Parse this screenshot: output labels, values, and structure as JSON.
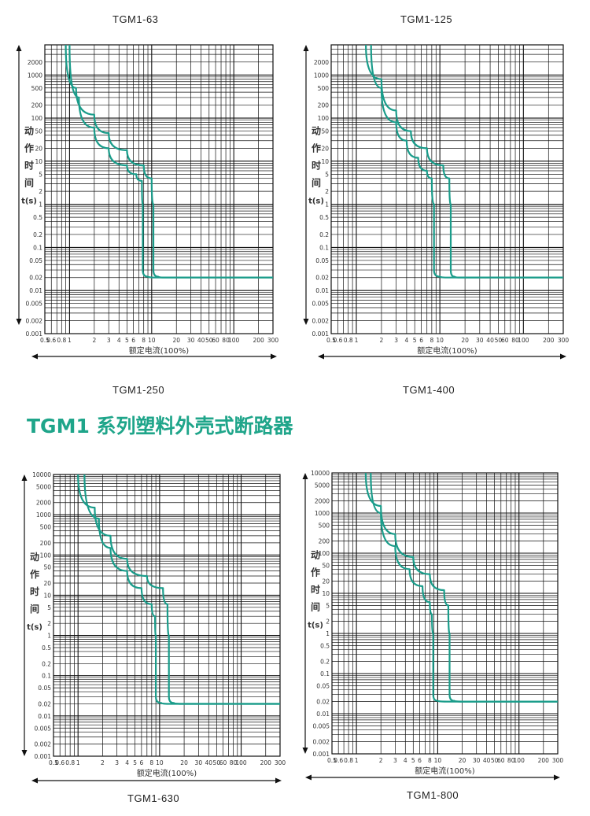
{
  "page": {
    "series_heading": "TGM1 系列塑料外壳式断路器",
    "accent_color": "#1fa58a",
    "curve_color": "#1a9c8a",
    "grid_color": "#111111"
  },
  "labels": {
    "tgm1_63": "TGM1-63",
    "tgm1_125": "TGM1-125",
    "tgm1_250": "TGM1-250",
    "tgm1_400": "TGM1-400",
    "tgm1_630": "TGM1-630",
    "tgm1_800": "TGM1-800"
  },
  "chart_data": [
    {
      "type": "line",
      "xlabel": "额定电流(100%)",
      "ylabel": [
        "动",
        "作",
        "时",
        "间",
        "t(s)"
      ],
      "x_scale": "log",
      "y_scale": "log",
      "xlim": [
        0.5,
        300
      ],
      "ylim": [
        0.001,
        5000
      ],
      "x_ticks": [
        0.5,
        0.6,
        0.8,
        1,
        2,
        3,
        4,
        5,
        6,
        8,
        10,
        20,
        30,
        40,
        50,
        60,
        80,
        100,
        200,
        300
      ],
      "x_tick_labels": [
        "0.5",
        "0.6",
        "0.8",
        "1",
        "2",
        "3",
        "4",
        "5",
        "6",
        "8",
        "10",
        "20",
        "30",
        "40",
        "50",
        "60",
        "80",
        "100",
        "200",
        "300"
      ],
      "y_ticks": [
        2000,
        1000,
        500,
        200,
        100,
        50,
        20,
        10,
        5,
        2,
        1,
        0.5,
        0.2,
        0.1,
        0.05,
        0.02,
        0.01,
        0.005,
        0.002,
        0.001
      ],
      "y_tick_labels": [
        "2000",
        "1000",
        "500",
        "200",
        "100",
        "50",
        "20",
        "10",
        "5",
        "2",
        "1",
        "0.5",
        "0.2",
        "0.1",
        "0.05",
        "0.02",
        "0.01",
        "0.005",
        "0.002",
        "0.001"
      ],
      "grid": true,
      "series": [
        {
          "points": [
            [
              1.0,
              5000
            ],
            [
              1.3,
              300
            ],
            [
              2.0,
              60
            ],
            [
              3.0,
              20
            ],
            [
              5.0,
              8
            ],
            [
              6.5,
              5
            ],
            [
              7.6,
              3.5
            ],
            [
              7.8,
              1
            ],
            [
              7.8,
              0.03
            ],
            [
              9.0,
              0.021
            ],
            [
              12.0,
              0.02
            ],
            [
              300,
              0.02
            ]
          ]
        },
        {
          "points": [
            [
              0.9,
              5000
            ],
            [
              1.2,
              500
            ],
            [
              2.0,
              120
            ],
            [
              3.0,
              45
            ],
            [
              5.0,
              18
            ],
            [
              8.0,
              8
            ],
            [
              10.0,
              4
            ],
            [
              10.5,
              1
            ],
            [
              10.5,
              0.03
            ],
            [
              12.0,
              0.021
            ],
            [
              15.0,
              0.02
            ],
            [
              300,
              0.02
            ]
          ]
        }
      ]
    },
    {
      "type": "line",
      "xlabel": "额定电流(100%)",
      "ylabel": [
        "动",
        "作",
        "时",
        "间",
        "t(s)"
      ],
      "x_scale": "log",
      "y_scale": "log",
      "xlim": [
        0.5,
        300
      ],
      "ylim": [
        0.001,
        5000
      ],
      "x_ticks": [
        0.5,
        0.6,
        0.8,
        1,
        2,
        3,
        4,
        5,
        6,
        8,
        10,
        20,
        30,
        40,
        50,
        60,
        80,
        100,
        200,
        300
      ],
      "x_tick_labels": [
        "0.5",
        "0.6",
        "0.8",
        "1",
        "2",
        "3",
        "4",
        "5",
        "6",
        "8",
        "10",
        "20",
        "30",
        "40",
        "50",
        "60",
        "80",
        "100",
        "200",
        "300"
      ],
      "y_ticks": [
        2000,
        1000,
        500,
        200,
        100,
        50,
        20,
        10,
        5,
        2,
        1,
        0.5,
        0.2,
        0.1,
        0.05,
        0.02,
        0.01,
        0.005,
        0.002,
        0.001
      ],
      "y_tick_labels": [
        "2000",
        "1000",
        "500",
        "200",
        "100",
        "50",
        "20",
        "10",
        "5",
        "2",
        "1",
        "0.5",
        "0.2",
        "0.1",
        "0.05",
        "0.02",
        "0.01",
        "0.005",
        "0.002",
        "0.001"
      ],
      "grid": true,
      "series": [
        {
          "points": [
            [
              1.5,
              5000
            ],
            [
              2.0,
              500
            ],
            [
              3.0,
              80
            ],
            [
              4.0,
              30
            ],
            [
              5.5,
              12
            ],
            [
              7.0,
              6
            ],
            [
              8.0,
              4
            ],
            [
              8.5,
              1
            ],
            [
              8.5,
              0.03
            ],
            [
              10.0,
              0.021
            ],
            [
              13.0,
              0.02
            ],
            [
              300,
              0.02
            ]
          ]
        },
        {
          "points": [
            [
              1.3,
              5000
            ],
            [
              2.0,
              800
            ],
            [
              3.0,
              150
            ],
            [
              4.5,
              50
            ],
            [
              7.0,
              20
            ],
            [
              11.0,
              8
            ],
            [
              13.0,
              4
            ],
            [
              13.5,
              1
            ],
            [
              13.5,
              0.03
            ],
            [
              15.0,
              0.021
            ],
            [
              18.0,
              0.02
            ],
            [
              300,
              0.02
            ]
          ]
        }
      ]
    },
    {
      "type": "line",
      "xlabel": "额定电流(100%)",
      "ylabel": [
        "动",
        "作",
        "时",
        "间",
        "t(s)"
      ],
      "x_scale": "log",
      "y_scale": "log",
      "xlim": [
        0.5,
        300
      ],
      "ylim": [
        0.001,
        10000
      ],
      "x_ticks": [
        0.5,
        0.6,
        0.8,
        1,
        2,
        3,
        4,
        5,
        6,
        8,
        10,
        20,
        30,
        40,
        50,
        60,
        80,
        100,
        200,
        300
      ],
      "x_tick_labels": [
        "0.5",
        "0.6",
        "0.8",
        "1",
        "2",
        "3",
        "4",
        "5",
        "6",
        "8",
        "10",
        "20",
        "30",
        "40",
        "50",
        "60",
        "80",
        "100",
        "200",
        "300"
      ],
      "y_ticks": [
        10000,
        5000,
        2000,
        1000,
        500,
        200,
        100,
        50,
        20,
        10,
        5,
        2,
        1,
        0.5,
        0.2,
        0.1,
        0.05,
        0.02,
        0.01,
        0.005,
        0.002,
        0.001
      ],
      "y_tick_labels": [
        "10000",
        "5000",
        "2000",
        "1000",
        "500",
        "200",
        "100",
        "50",
        "20",
        "10",
        "5",
        "2",
        "1",
        "0.5",
        "0.2",
        "0.1",
        "0.05",
        "0.02",
        "0.01",
        "0.005",
        "0.002",
        "0.001"
      ],
      "grid": true,
      "series": [
        {
          "points": [
            [
              1.2,
              10000
            ],
            [
              1.8,
              800
            ],
            [
              2.5,
              150
            ],
            [
              4.0,
              40
            ],
            [
              6.0,
              15
            ],
            [
              8.0,
              6
            ],
            [
              8.8,
              3
            ],
            [
              9.0,
              1
            ],
            [
              9.0,
              0.03
            ],
            [
              10.5,
              0.021
            ],
            [
              14.0,
              0.02
            ],
            [
              300,
              0.02
            ]
          ]
        },
        {
          "points": [
            [
              1.0,
              10000
            ],
            [
              1.6,
              1500
            ],
            [
              2.5,
              300
            ],
            [
              4.0,
              80
            ],
            [
              7.0,
              30
            ],
            [
              11.0,
              15
            ],
            [
              12.5,
              6
            ],
            [
              13.0,
              1
            ],
            [
              13.0,
              0.03
            ],
            [
              15.0,
              0.021
            ],
            [
              20.0,
              0.02
            ],
            [
              300,
              0.02
            ]
          ]
        }
      ]
    },
    {
      "type": "line",
      "xlabel": "额定电流(100%)",
      "ylabel": [
        "动",
        "作",
        "时",
        "间",
        "t(s)"
      ],
      "x_scale": "log",
      "y_scale": "log",
      "xlim": [
        0.5,
        300
      ],
      "ylim": [
        0.001,
        10000
      ],
      "x_ticks": [
        0.5,
        0.6,
        0.8,
        1,
        2,
        3,
        4,
        5,
        6,
        8,
        10,
        20,
        30,
        40,
        50,
        60,
        80,
        100,
        200,
        300
      ],
      "x_tick_labels": [
        "0.5",
        "0.6",
        "0.8",
        "1",
        "2",
        "3",
        "4",
        "5",
        "6",
        "8",
        "10",
        "20",
        "30",
        "40",
        "50",
        "60",
        "80",
        "100",
        "200",
        "300"
      ],
      "y_ticks": [
        10000,
        5000,
        2000,
        1000,
        500,
        200,
        100,
        50,
        20,
        10,
        5,
        2,
        1,
        0.5,
        0.2,
        0.1,
        0.05,
        0.02,
        0.01,
        0.005,
        0.002,
        0.001
      ],
      "y_tick_labels": [
        "10000",
        "5000",
        "2000",
        "1000",
        "500",
        "200",
        "100",
        "50",
        "20",
        "10",
        "5",
        "2",
        "1",
        "0.5",
        "0.2",
        "0.1",
        "0.05",
        "0.02",
        "0.01",
        "0.005",
        "0.002",
        "0.001"
      ],
      "grid": true,
      "series": [
        {
          "points": [
            [
              1.5,
              10000
            ],
            [
              2.0,
              1000
            ],
            [
              3.0,
              150
            ],
            [
              4.5,
              40
            ],
            [
              6.5,
              15
            ],
            [
              8.0,
              6
            ],
            [
              8.5,
              3
            ],
            [
              8.8,
              1
            ],
            [
              8.8,
              0.03
            ],
            [
              10.0,
              0.021
            ],
            [
              14.0,
              0.02
            ],
            [
              300,
              0.02
            ]
          ]
        },
        {
          "points": [
            [
              1.3,
              10000
            ],
            [
              2.0,
              1500
            ],
            [
              3.0,
              300
            ],
            [
              5.0,
              80
            ],
            [
              8.0,
              30
            ],
            [
              12.0,
              12
            ],
            [
              13.5,
              5
            ],
            [
              14.0,
              1
            ],
            [
              14.0,
              0.03
            ],
            [
              16.0,
              0.021
            ],
            [
              22.0,
              0.02
            ],
            [
              300,
              0.02
            ]
          ]
        }
      ]
    }
  ]
}
